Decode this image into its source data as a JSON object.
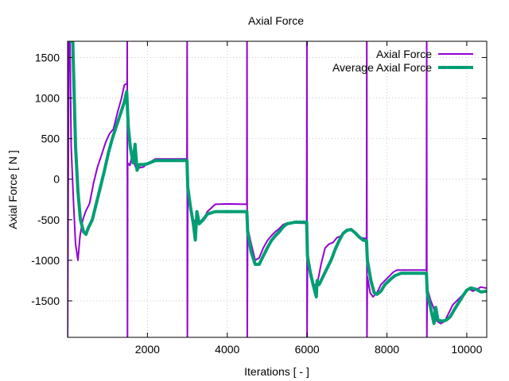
{
  "chart_data": {
    "type": "line",
    "title": "Axial Force",
    "xlabel": "Iterations [ - ]",
    "ylabel": "Axial Force [ N ]",
    "xlim": [
      0,
      10500
    ],
    "ylim": [
      -1950,
      1700
    ],
    "x_ticks": [
      2000,
      4000,
      6000,
      8000,
      10000
    ],
    "y_ticks": [
      -1500,
      -1000,
      -500,
      0,
      500,
      1000,
      1500
    ],
    "grid": true,
    "legend_position": "top-right",
    "series": [
      {
        "name": "Axial Force",
        "color": "#9400d3",
        "points": [
          [
            0,
            -1950
          ],
          [
            30,
            1700
          ],
          [
            60,
            1700
          ],
          [
            90,
            400
          ],
          [
            150,
            -300
          ],
          [
            200,
            -800
          ],
          [
            260,
            -1000
          ],
          [
            310,
            -700
          ],
          [
            380,
            -500
          ],
          [
            450,
            -400
          ],
          [
            550,
            -300
          ],
          [
            650,
            -50
          ],
          [
            750,
            150
          ],
          [
            850,
            300
          ],
          [
            950,
            450
          ],
          [
            1050,
            560
          ],
          [
            1150,
            620
          ],
          [
            1250,
            820
          ],
          [
            1350,
            1000
          ],
          [
            1420,
            1160
          ],
          [
            1490,
            1180
          ],
          [
            1495,
            1700
          ],
          [
            1500,
            -1950
          ],
          [
            1505,
            200
          ],
          [
            1560,
            170
          ],
          [
            1620,
            300
          ],
          [
            1700,
            150
          ],
          [
            1800,
            140
          ],
          [
            1900,
            150
          ],
          [
            2000,
            200
          ],
          [
            2100,
            220
          ],
          [
            2200,
            250
          ],
          [
            2500,
            250
          ],
          [
            2990,
            250
          ],
          [
            2995,
            1700
          ],
          [
            3000,
            -1950
          ],
          [
            3010,
            -200
          ],
          [
            3080,
            -400
          ],
          [
            3150,
            -500
          ],
          [
            3250,
            -540
          ],
          [
            3350,
            -510
          ],
          [
            3450,
            -450
          ],
          [
            3500,
            -400
          ],
          [
            3700,
            -310
          ],
          [
            4000,
            -305
          ],
          [
            4490,
            -310
          ],
          [
            4495,
            1700
          ],
          [
            4500,
            -1950
          ],
          [
            4510,
            -600
          ],
          [
            4600,
            -800
          ],
          [
            4700,
            -1000
          ],
          [
            4800,
            -970
          ],
          [
            4900,
            -850
          ],
          [
            5000,
            -760
          ],
          [
            5100,
            -700
          ],
          [
            5200,
            -650
          ],
          [
            5300,
            -610
          ],
          [
            5400,
            -560
          ],
          [
            5500,
            -540
          ],
          [
            5700,
            -540
          ],
          [
            5990,
            -545
          ],
          [
            5995,
            1700
          ],
          [
            6000,
            -1950
          ],
          [
            6010,
            -1000
          ],
          [
            6080,
            -1200
          ],
          [
            6150,
            -1300
          ],
          [
            6250,
            -1300
          ],
          [
            6350,
            -1050
          ],
          [
            6450,
            -850
          ],
          [
            6550,
            -800
          ],
          [
            6650,
            -780
          ],
          [
            6750,
            -720
          ],
          [
            6850,
            -700
          ],
          [
            6950,
            -640
          ],
          [
            7050,
            -620
          ],
          [
            7150,
            -640
          ],
          [
            7250,
            -680
          ],
          [
            7350,
            -720
          ],
          [
            7450,
            -730
          ],
          [
            7490,
            -730
          ],
          [
            7495,
            1700
          ],
          [
            7500,
            -1950
          ],
          [
            7510,
            -1200
          ],
          [
            7580,
            -1400
          ],
          [
            7650,
            -1450
          ],
          [
            7750,
            -1400
          ],
          [
            7850,
            -1300
          ],
          [
            7950,
            -1250
          ],
          [
            8050,
            -1200
          ],
          [
            8150,
            -1150
          ],
          [
            8250,
            -1120
          ],
          [
            8500,
            -1120
          ],
          [
            8990,
            -1120
          ],
          [
            8995,
            1700
          ],
          [
            9000,
            -1950
          ],
          [
            9010,
            -1350
          ],
          [
            9100,
            -1500
          ],
          [
            9180,
            -1600
          ],
          [
            9250,
            -1750
          ],
          [
            9350,
            -1780
          ],
          [
            9450,
            -1750
          ],
          [
            9550,
            -1650
          ],
          [
            9650,
            -1550
          ],
          [
            9750,
            -1500
          ],
          [
            9850,
            -1450
          ],
          [
            9950,
            -1400
          ],
          [
            10050,
            -1350
          ],
          [
            10150,
            -1380
          ],
          [
            10250,
            -1360
          ],
          [
            10350,
            -1330
          ],
          [
            10450,
            -1340
          ],
          [
            10500,
            -1340
          ]
        ]
      },
      {
        "name": "Average Axial Force",
        "color": "#009e73",
        "points": [
          [
            50,
            1700
          ],
          [
            130,
            1700
          ],
          [
            200,
            400
          ],
          [
            260,
            -150
          ],
          [
            320,
            -500
          ],
          [
            400,
            -650
          ],
          [
            460,
            -680
          ],
          [
            520,
            -600
          ],
          [
            620,
            -500
          ],
          [
            720,
            -300
          ],
          [
            820,
            -100
          ],
          [
            920,
            100
          ],
          [
            1020,
            320
          ],
          [
            1120,
            500
          ],
          [
            1220,
            650
          ],
          [
            1320,
            800
          ],
          [
            1420,
            950
          ],
          [
            1480,
            1080
          ],
          [
            1520,
            650
          ],
          [
            1570,
            400
          ],
          [
            1640,
            200
          ],
          [
            1690,
            430
          ],
          [
            1740,
            110
          ],
          [
            1800,
            180
          ],
          [
            1900,
            180
          ],
          [
            2000,
            190
          ],
          [
            2100,
            210
          ],
          [
            2200,
            230
          ],
          [
            2500,
            230
          ],
          [
            2990,
            230
          ],
          [
            3010,
            -100
          ],
          [
            3080,
            -350
          ],
          [
            3150,
            -550
          ],
          [
            3200,
            -750
          ],
          [
            3240,
            -400
          ],
          [
            3300,
            -550
          ],
          [
            3400,
            -500
          ],
          [
            3500,
            -430
          ],
          [
            3700,
            -400
          ],
          [
            4000,
            -400
          ],
          [
            4490,
            -400
          ],
          [
            4510,
            -650
          ],
          [
            4600,
            -900
          ],
          [
            4700,
            -1050
          ],
          [
            4800,
            -1050
          ],
          [
            4900,
            -950
          ],
          [
            5000,
            -850
          ],
          [
            5100,
            -760
          ],
          [
            5200,
            -700
          ],
          [
            5300,
            -650
          ],
          [
            5400,
            -590
          ],
          [
            5500,
            -550
          ],
          [
            5700,
            -530
          ],
          [
            5990,
            -530
          ],
          [
            6010,
            -950
          ],
          [
            6080,
            -1150
          ],
          [
            6150,
            -1300
          ],
          [
            6230,
            -1450
          ],
          [
            6250,
            -1250
          ],
          [
            6300,
            -1300
          ],
          [
            6400,
            -1200
          ],
          [
            6500,
            -1100
          ],
          [
            6600,
            -1000
          ],
          [
            6700,
            -870
          ],
          [
            6800,
            -760
          ],
          [
            6900,
            -670
          ],
          [
            7000,
            -630
          ],
          [
            7100,
            -620
          ],
          [
            7200,
            -660
          ],
          [
            7300,
            -710
          ],
          [
            7400,
            -750
          ],
          [
            7490,
            -760
          ],
          [
            7510,
            -1000
          ],
          [
            7600,
            -1250
          ],
          [
            7680,
            -1400
          ],
          [
            7750,
            -1420
          ],
          [
            7850,
            -1380
          ],
          [
            7950,
            -1300
          ],
          [
            8100,
            -1230
          ],
          [
            8200,
            -1190
          ],
          [
            8350,
            -1160
          ],
          [
            8500,
            -1160
          ],
          [
            8990,
            -1160
          ],
          [
            9010,
            -1400
          ],
          [
            9100,
            -1600
          ],
          [
            9180,
            -1780
          ],
          [
            9220,
            -1580
          ],
          [
            9280,
            -1740
          ],
          [
            9380,
            -1750
          ],
          [
            9480,
            -1740
          ],
          [
            9580,
            -1700
          ],
          [
            9700,
            -1600
          ],
          [
            9800,
            -1520
          ],
          [
            9900,
            -1440
          ],
          [
            10000,
            -1370
          ],
          [
            10100,
            -1340
          ],
          [
            10250,
            -1360
          ],
          [
            10350,
            -1390
          ],
          [
            10500,
            -1380
          ]
        ]
      }
    ]
  }
}
